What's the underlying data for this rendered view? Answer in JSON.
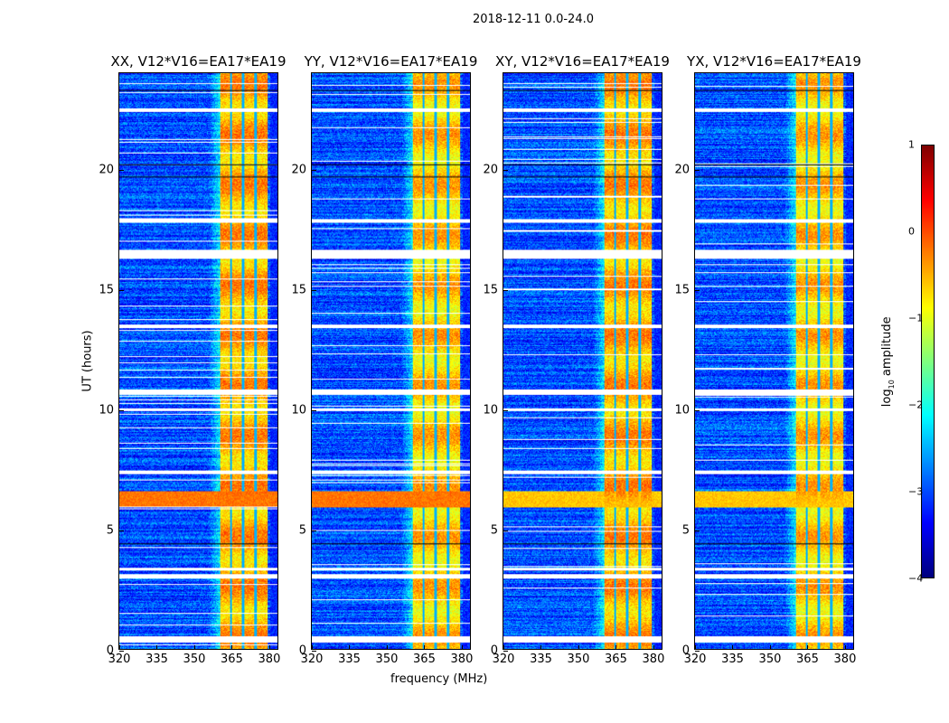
{
  "suptitle": "2018-12-11 0.0-24.0",
  "chart_data": {
    "type": "heatmap",
    "title": "2018-12-11 0.0-24.0",
    "xlabel": "frequency (MHz)",
    "ylabel": "UT (hours)",
    "xlim": [
      320,
      384
    ],
    "ylim": [
      0,
      24
    ],
    "xticks": [
      "320",
      "335",
      "350",
      "365",
      "380"
    ],
    "yticks": [
      "0",
      "5",
      "10",
      "15",
      "20"
    ],
    "panels": [
      {
        "title": "XX, V12*V16=EA17*EA19"
      },
      {
        "title": "YY, V12*V16=EA17*EA19"
      },
      {
        "title": "XY, V12*V16=EA17*EA19"
      },
      {
        "title": "YX, V12*V16=EA17*EA19"
      }
    ],
    "colorbar": {
      "label_prefix": "log",
      "label_sub": "10",
      "label_suffix": " amplitude",
      "range": [
        -4,
        1
      ],
      "ticks": [
        "1",
        "0",
        "−1",
        "−2",
        "−3",
        "−4"
      ],
      "colormap": "jet"
    },
    "features": {
      "bright_band_mhz": [
        360.5,
        380
      ],
      "band_dips_mhz": [
        365,
        370,
        375
      ],
      "background_log_amp": -3,
      "band_log_amp": -0.5,
      "rfi_band_hours": [
        5.9,
        6.6
      ],
      "flagged_hours": [
        [
          0.3,
          0.55
        ],
        [
          2.95,
          3.15
        ],
        [
          3.3,
          3.4
        ],
        [
          7.3,
          7.45
        ],
        [
          9.95,
          10.05
        ],
        [
          10.6,
          10.85
        ],
        [
          13.4,
          13.55
        ],
        [
          16.3,
          16.65
        ],
        [
          17.8,
          17.95
        ],
        [
          22.4,
          22.55
        ]
      ]
    }
  }
}
